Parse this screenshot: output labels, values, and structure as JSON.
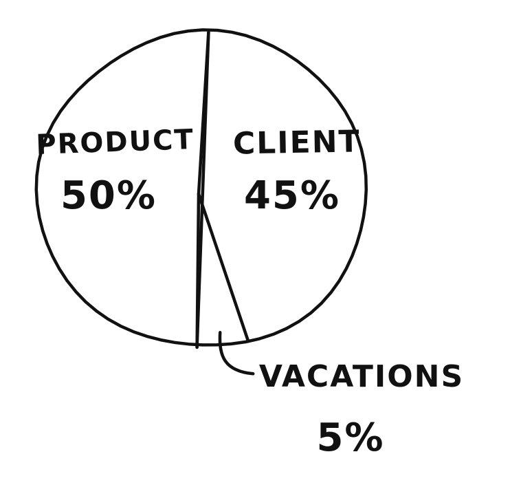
{
  "chart_data": {
    "type": "pie",
    "slices": [
      {
        "label": "PRODUCT",
        "value": 50,
        "value_label": "50%"
      },
      {
        "label": "CLIENT",
        "value": 45,
        "value_label": "45%"
      },
      {
        "label": "VACATIONS",
        "value": 5,
        "value_label": "5%"
      }
    ],
    "title": "",
    "legend": "none",
    "colors": {
      "stroke": "#111111",
      "fill": "#ffffff"
    }
  }
}
